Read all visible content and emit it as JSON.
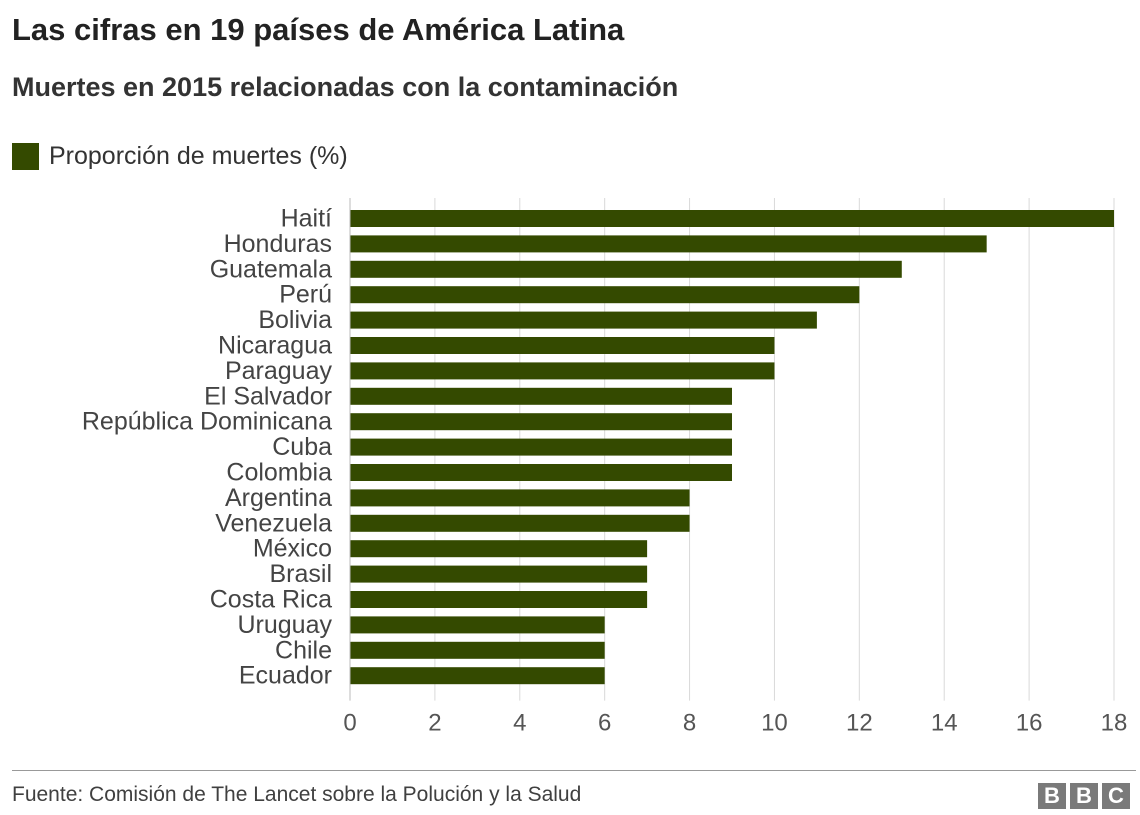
{
  "chart_data": {
    "type": "bar",
    "orientation": "horizontal",
    "title": "Las cifras en 19 países de América Latina",
    "subtitle": "Muertes en 2015 relacionadas con la contaminación",
    "categories": [
      "Haití",
      "Honduras",
      "Guatemala",
      "Perú",
      "Bolivia",
      "Nicaragua",
      "Paraguay",
      "El Salvador",
      "República Dominicana",
      "Cuba",
      "Colombia",
      "Argentina",
      "Venezuela",
      "México",
      "Brasil",
      "Costa Rica",
      "Uruguay",
      "Chile",
      "Ecuador"
    ],
    "series": [
      {
        "name": "Proporción de muertes (%)",
        "values": [
          18,
          15,
          13,
          12,
          11,
          10,
          10,
          9,
          9,
          9,
          9,
          8,
          8,
          7,
          7,
          7,
          6,
          6,
          6
        ],
        "color": "#344a00"
      }
    ],
    "xlim": [
      0,
      18
    ],
    "xticks": [
      0,
      2,
      4,
      6,
      8,
      10,
      12,
      14,
      16,
      18
    ],
    "grid": true,
    "legend": "top-left",
    "source": "Fuente: Comisión de The Lancet sobre la Polución y la Salud"
  },
  "logo": {
    "letters": [
      "B",
      "B",
      "C"
    ]
  }
}
